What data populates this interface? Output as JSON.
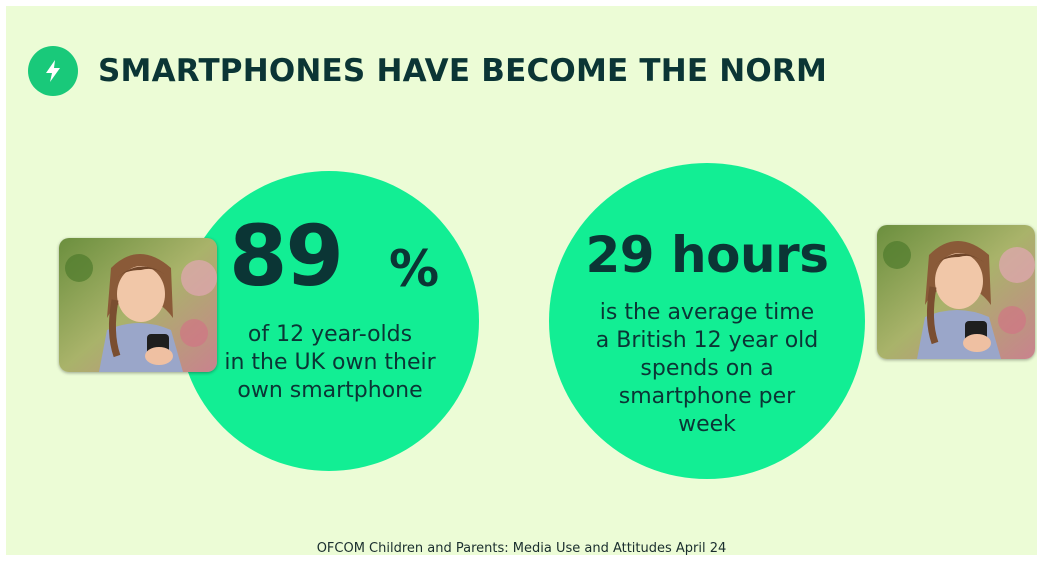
{
  "header": {
    "icon": "lightning-bolt-icon",
    "title": "SMARTPHONES HAVE BECOME THE NORM"
  },
  "stat_ownership": {
    "value": "89",
    "unit": "%",
    "caption_lines": [
      "of 12 year-olds",
      "in the UK own their",
      "own smartphone"
    ]
  },
  "stat_usage": {
    "value": "29 hours",
    "caption_lines": [
      "is the average time",
      "a British 12 year old",
      "spends on a",
      "smartphone per",
      "week"
    ]
  },
  "images": {
    "left": "girl-using-smartphone-photo",
    "right": "girl-using-smartphone-photo"
  },
  "footer": {
    "source": "OFCOM Children and Parents: Media Use and Attitudes April 24"
  },
  "colors": {
    "background": "#ecfcd6",
    "circle": "#12ee94",
    "icon_circle": "#19c97a",
    "text": "#0b3535"
  }
}
